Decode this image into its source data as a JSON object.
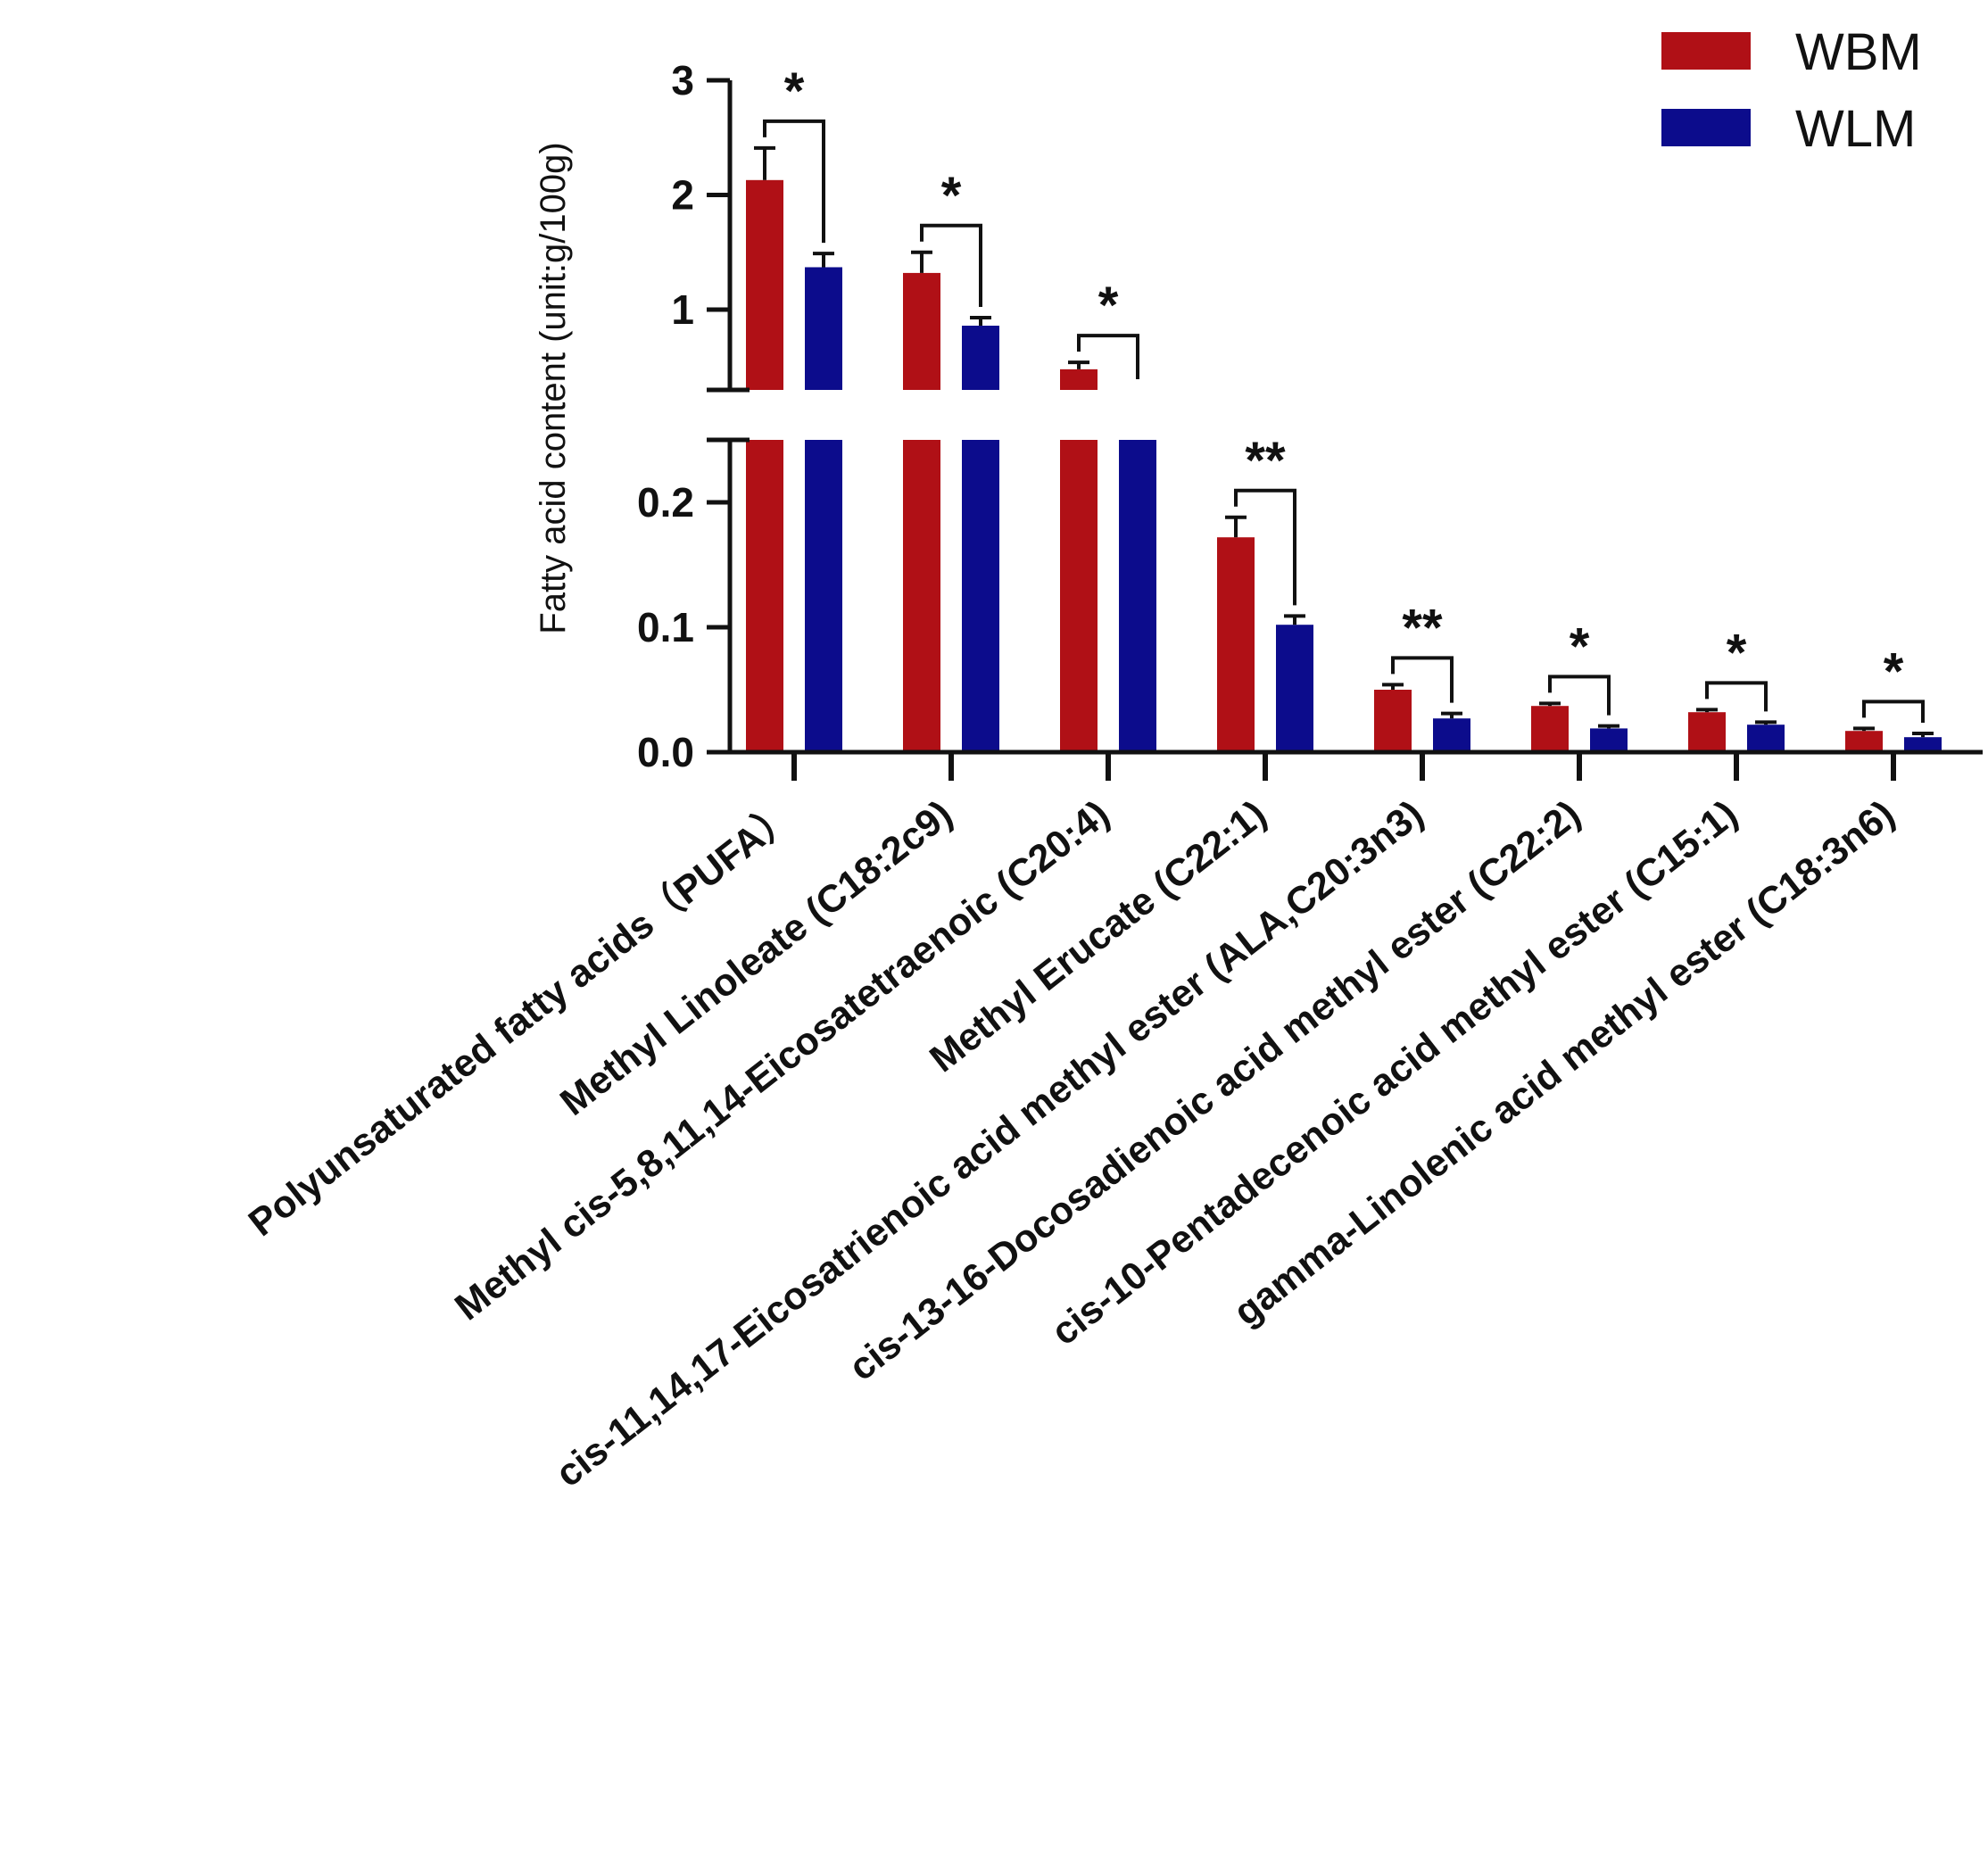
{
  "chart_data": {
    "type": "bar",
    "title": "",
    "xlabel": "",
    "ylabel": "Fatty acid content (unit:g/100g)",
    "y_axis_broken": true,
    "lower_segment": {
      "ylim": [
        0,
        0.25
      ],
      "ticks": [
        "0.0",
        "0.1",
        "0.2"
      ]
    },
    "upper_segment": {
      "ylim": [
        0.3,
        3
      ],
      "ticks": [
        "1",
        "2",
        "3"
      ]
    },
    "categories": [
      "Polyunsaturated fatty acids（PUFA）",
      "Methyl Linoleate (C18:2c9)",
      "Methyl cis-5,8,11,14-Eicosatetraenoic (C20:4)",
      "Methyl Erucate (C22:1)",
      "cis-11,14,17-Eicosatrienoic acid methyl ester (ALA,C20:3n3)",
      "cis-13-16-Docosadienoic acid methyl ester (C22:2)",
      "cis-10-Pentadecenoic acid methyl ester (C15:1)",
      "gamma-Linolenic acid methyl ester (C18:3n6)"
    ],
    "series": [
      {
        "name": "WBM",
        "color": "#b01016",
        "values": [
          2.13,
          1.32,
          0.48,
          0.172,
          0.05,
          0.037,
          0.032,
          0.017
        ],
        "errors": [
          0.28,
          0.18,
          0.06,
          0.016,
          0.004,
          0.002,
          0.002,
          0.002
        ]
      },
      {
        "name": "WLM",
        "color": "#0c0c8c",
        "values": [
          1.37,
          0.86,
          0.27,
          0.102,
          0.027,
          0.019,
          0.022,
          0.012
        ],
        "errors": [
          0.12,
          0.07,
          0.02,
          0.007,
          0.004,
          0.002,
          0.002,
          0.003
        ]
      }
    ],
    "significance": [
      "*",
      "*",
      "*",
      "**",
      "**",
      "*",
      "*",
      "*"
    ],
    "legend": {
      "position": "top-right",
      "entries": [
        "WBM",
        "WLM"
      ]
    },
    "grid": false
  }
}
